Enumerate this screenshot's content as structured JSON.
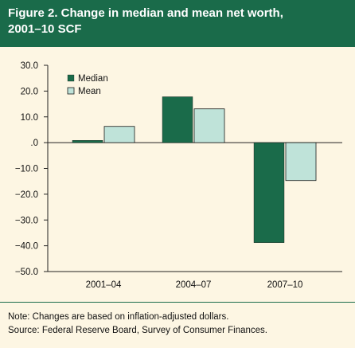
{
  "figure": {
    "title_line1": "Figure 2. Change in median and mean net worth,",
    "title_line2": "2001–10 SCF",
    "note": "Note: Changes are based on inflation-adjusted dollars.",
    "source": "Source: Federal Reserve Board, Survey of Consumer Finances."
  },
  "colors": {
    "header_bg": "#1a6b4a",
    "panel_bg": "#fdf6e3",
    "median": "#1a6b4a",
    "mean": "#bfe3d9"
  },
  "chart_data": {
    "type": "bar",
    "categories": [
      "2001–04",
      "2004–07",
      "2007–10"
    ],
    "series": [
      {
        "name": "Median",
        "values": [
          0.9,
          17.8,
          -38.8
        ]
      },
      {
        "name": "Mean",
        "values": [
          6.3,
          13.1,
          -14.7
        ]
      }
    ],
    "yticks": [
      "30.0",
      "20.0",
      "10.0",
      ".0",
      "−10.0",
      "−20.0",
      "−30.0",
      "−40.0",
      "−50.0"
    ],
    "ylim": [
      -50,
      30
    ],
    "grid": false,
    "legend_position": "top-left"
  }
}
